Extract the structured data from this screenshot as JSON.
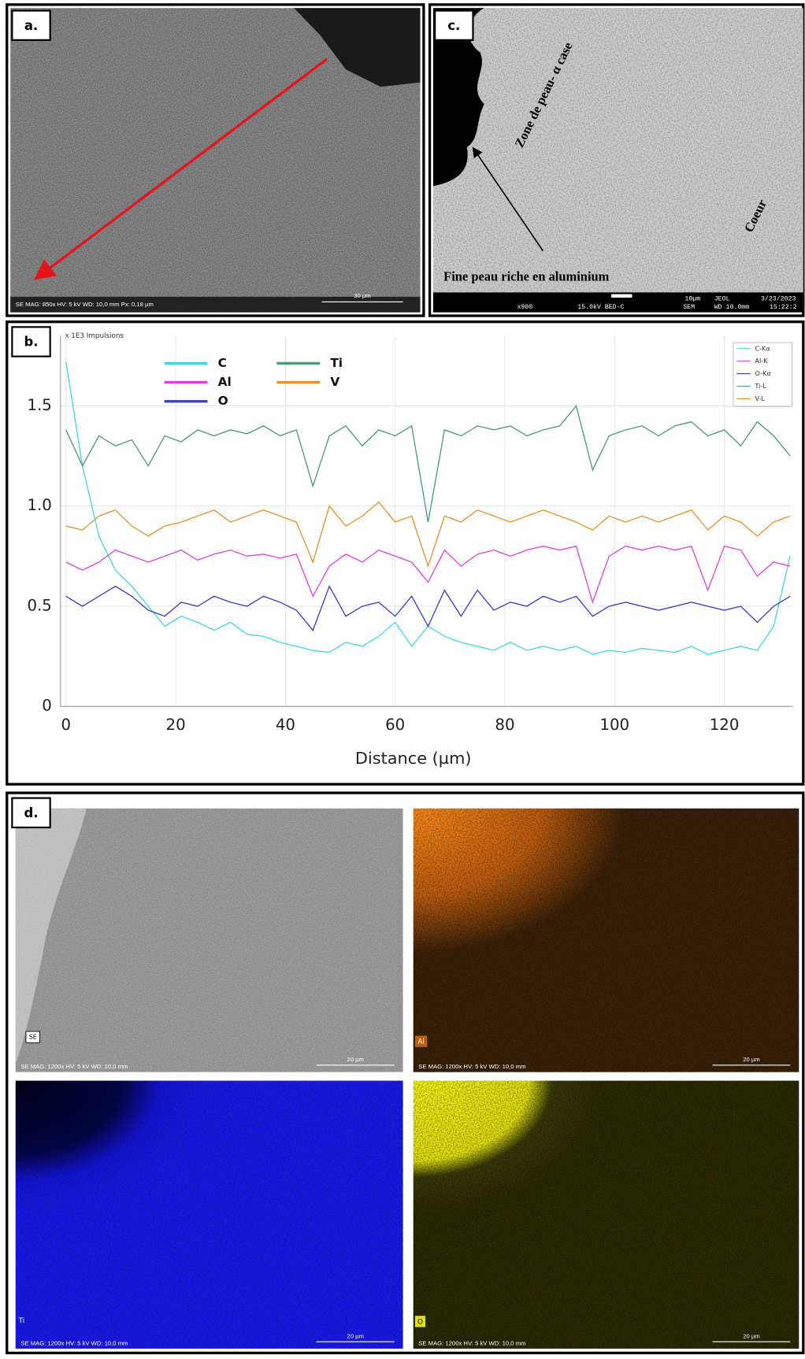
{
  "panels": {
    "a": {
      "label": "a.",
      "caption": "SE   MAG: 850x   HV: 5 kV   WD: 10,0 mm   Px: 0,18 µm",
      "scale_bar": "30 µm"
    },
    "b": {
      "label": "b."
    },
    "c": {
      "label": "c.",
      "zone": "Zone de peau- α case",
      "core": "Coeur",
      "skin": "Fine peau riche en aluminium",
      "info": {
        "mag": "x900",
        "kv": "15.0kV BED-C",
        "scale": "10µm",
        "brand": "JEOL",
        "date": "3/23/2023",
        "mode": "SEM",
        "wd": "WD 10.0mm",
        "time": "15:22:2"
      }
    },
    "d": {
      "label": "d.",
      "se_tag": "SE",
      "al_tag": "Al",
      "ti_tag": "Ti",
      "o_tag": "O",
      "caption": "SE   MAG: 1200x   HV: 5 kV   WD: 10,0 mm",
      "scale_bar": "20 µm"
    }
  },
  "chart_data": {
    "type": "line",
    "unit_label": "x 1E3 Impulsions",
    "x_label": "Distance (µm)",
    "x": [
      0,
      3,
      6,
      9,
      12,
      15,
      18,
      21,
      24,
      27,
      30,
      33,
      36,
      39,
      42,
      45,
      48,
      51,
      54,
      57,
      60,
      63,
      66,
      69,
      72,
      75,
      78,
      81,
      84,
      87,
      90,
      93,
      96,
      99,
      102,
      105,
      108,
      111,
      114,
      117,
      120,
      123,
      126,
      129,
      132
    ],
    "series": [
      {
        "name": "C",
        "line_label": "C-Kα",
        "color": "#3fd8e0",
        "values": [
          1.72,
          1.2,
          0.85,
          0.68,
          0.6,
          0.5,
          0.4,
          0.45,
          0.42,
          0.38,
          0.42,
          0.36,
          0.35,
          0.32,
          0.3,
          0.28,
          0.27,
          0.32,
          0.3,
          0.35,
          0.42,
          0.3,
          0.4,
          0.35,
          0.32,
          0.3,
          0.28,
          0.32,
          0.28,
          0.3,
          0.28,
          0.3,
          0.26,
          0.28,
          0.27,
          0.29,
          0.28,
          0.27,
          0.3,
          0.26,
          0.28,
          0.3,
          0.28,
          0.4,
          0.75
        ]
      },
      {
        "name": "Al",
        "line_label": "Al-K",
        "color": "#e040e0",
        "values": [
          0.72,
          0.68,
          0.72,
          0.78,
          0.75,
          0.72,
          0.75,
          0.78,
          0.73,
          0.76,
          0.78,
          0.75,
          0.76,
          0.74,
          0.76,
          0.55,
          0.7,
          0.76,
          0.72,
          0.78,
          0.75,
          0.72,
          0.62,
          0.78,
          0.7,
          0.76,
          0.78,
          0.75,
          0.78,
          0.8,
          0.78,
          0.8,
          0.52,
          0.75,
          0.8,
          0.78,
          0.8,
          0.78,
          0.8,
          0.58,
          0.8,
          0.78,
          0.65,
          0.72,
          0.7
        ]
      },
      {
        "name": "O",
        "line_label": "O-Kα",
        "color": "#3b3bc8",
        "values": [
          0.55,
          0.5,
          0.55,
          0.6,
          0.55,
          0.48,
          0.45,
          0.52,
          0.5,
          0.55,
          0.52,
          0.5,
          0.55,
          0.52,
          0.48,
          0.38,
          0.6,
          0.45,
          0.5,
          0.52,
          0.45,
          0.55,
          0.4,
          0.58,
          0.45,
          0.58,
          0.48,
          0.52,
          0.5,
          0.55,
          0.52,
          0.55,
          0.45,
          0.5,
          0.52,
          0.5,
          0.48,
          0.5,
          0.52,
          0.5,
          0.48,
          0.5,
          0.42,
          0.5,
          0.55
        ]
      },
      {
        "name": "Ti",
        "line_label": "Ti-L",
        "color": "#4a9a78",
        "values": [
          1.38,
          1.2,
          1.35,
          1.3,
          1.33,
          1.2,
          1.35,
          1.32,
          1.38,
          1.35,
          1.38,
          1.36,
          1.4,
          1.35,
          1.38,
          1.1,
          1.35,
          1.4,
          1.3,
          1.38,
          1.35,
          1.4,
          0.92,
          1.38,
          1.35,
          1.4,
          1.38,
          1.4,
          1.35,
          1.38,
          1.4,
          1.5,
          1.18,
          1.35,
          1.38,
          1.4,
          1.35,
          1.4,
          1.42,
          1.35,
          1.38,
          1.3,
          1.42,
          1.35,
          1.25
        ]
      },
      {
        "name": "V",
        "line_label": "V-L",
        "color": "#e8902a",
        "values": [
          0.9,
          0.88,
          0.95,
          0.98,
          0.9,
          0.85,
          0.9,
          0.92,
          0.95,
          0.98,
          0.92,
          0.95,
          0.98,
          0.95,
          0.92,
          0.72,
          1.0,
          0.9,
          0.95,
          1.02,
          0.92,
          0.95,
          0.7,
          0.95,
          0.92,
          0.98,
          0.95,
          0.92,
          0.95,
          0.98,
          0.95,
          0.92,
          0.88,
          0.95,
          0.92,
          0.95,
          0.92,
          0.95,
          0.98,
          0.88,
          0.95,
          0.92,
          0.85,
          0.92,
          0.95
        ]
      }
    ],
    "xlim": [
      -1,
      132.5
    ],
    "xticks": [
      0,
      20,
      40,
      60,
      80,
      100,
      120
    ],
    "ylim": [
      0,
      1.85
    ],
    "yticks": [
      0,
      0.5,
      {
        "value": 1,
        "label": "1.0"
      },
      1.5
    ],
    "grid": true
  }
}
